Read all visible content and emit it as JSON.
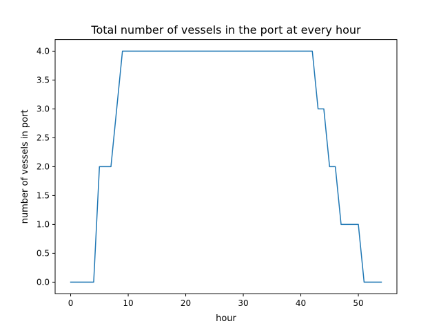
{
  "chart_data": {
    "type": "line",
    "title": "Total number of vessels in the port at every hour",
    "xlabel": "hour",
    "ylabel": "number of vessels in port",
    "xlim": [
      -2.7,
      56.7
    ],
    "ylim": [
      -0.2,
      4.2
    ],
    "xticks": [
      0,
      10,
      20,
      30,
      40,
      50
    ],
    "xtick_labels": [
      "0",
      "10",
      "20",
      "30",
      "40",
      "50"
    ],
    "yticks": [
      0.0,
      0.5,
      1.0,
      1.5,
      2.0,
      2.5,
      3.0,
      3.5,
      4.0
    ],
    "ytick_labels": [
      "0.0",
      "0.5",
      "1.0",
      "1.5",
      "2.0",
      "2.5",
      "3.0",
      "3.5",
      "4.0"
    ],
    "grid": false,
    "series": [
      {
        "color": "#1f77b4",
        "x": [
          0,
          1,
          2,
          3,
          4,
          5,
          6,
          7,
          8,
          9,
          10,
          11,
          12,
          13,
          14,
          15,
          16,
          17,
          18,
          19,
          20,
          21,
          22,
          23,
          24,
          25,
          26,
          27,
          28,
          29,
          30,
          31,
          32,
          33,
          34,
          35,
          36,
          37,
          38,
          39,
          40,
          41,
          42,
          43,
          44,
          45,
          46,
          47,
          48,
          49,
          50,
          51,
          52,
          53,
          54
        ],
        "values": [
          0,
          0,
          0,
          0,
          0,
          2,
          2,
          2,
          3,
          4,
          4,
          4,
          4,
          4,
          4,
          4,
          4,
          4,
          4,
          4,
          4,
          4,
          4,
          4,
          4,
          4,
          4,
          4,
          4,
          4,
          4,
          4,
          4,
          4,
          4,
          4,
          4,
          4,
          4,
          4,
          4,
          4,
          4,
          3,
          3,
          2,
          2,
          1,
          1,
          1,
          1,
          0,
          0,
          0,
          0
        ]
      }
    ]
  }
}
